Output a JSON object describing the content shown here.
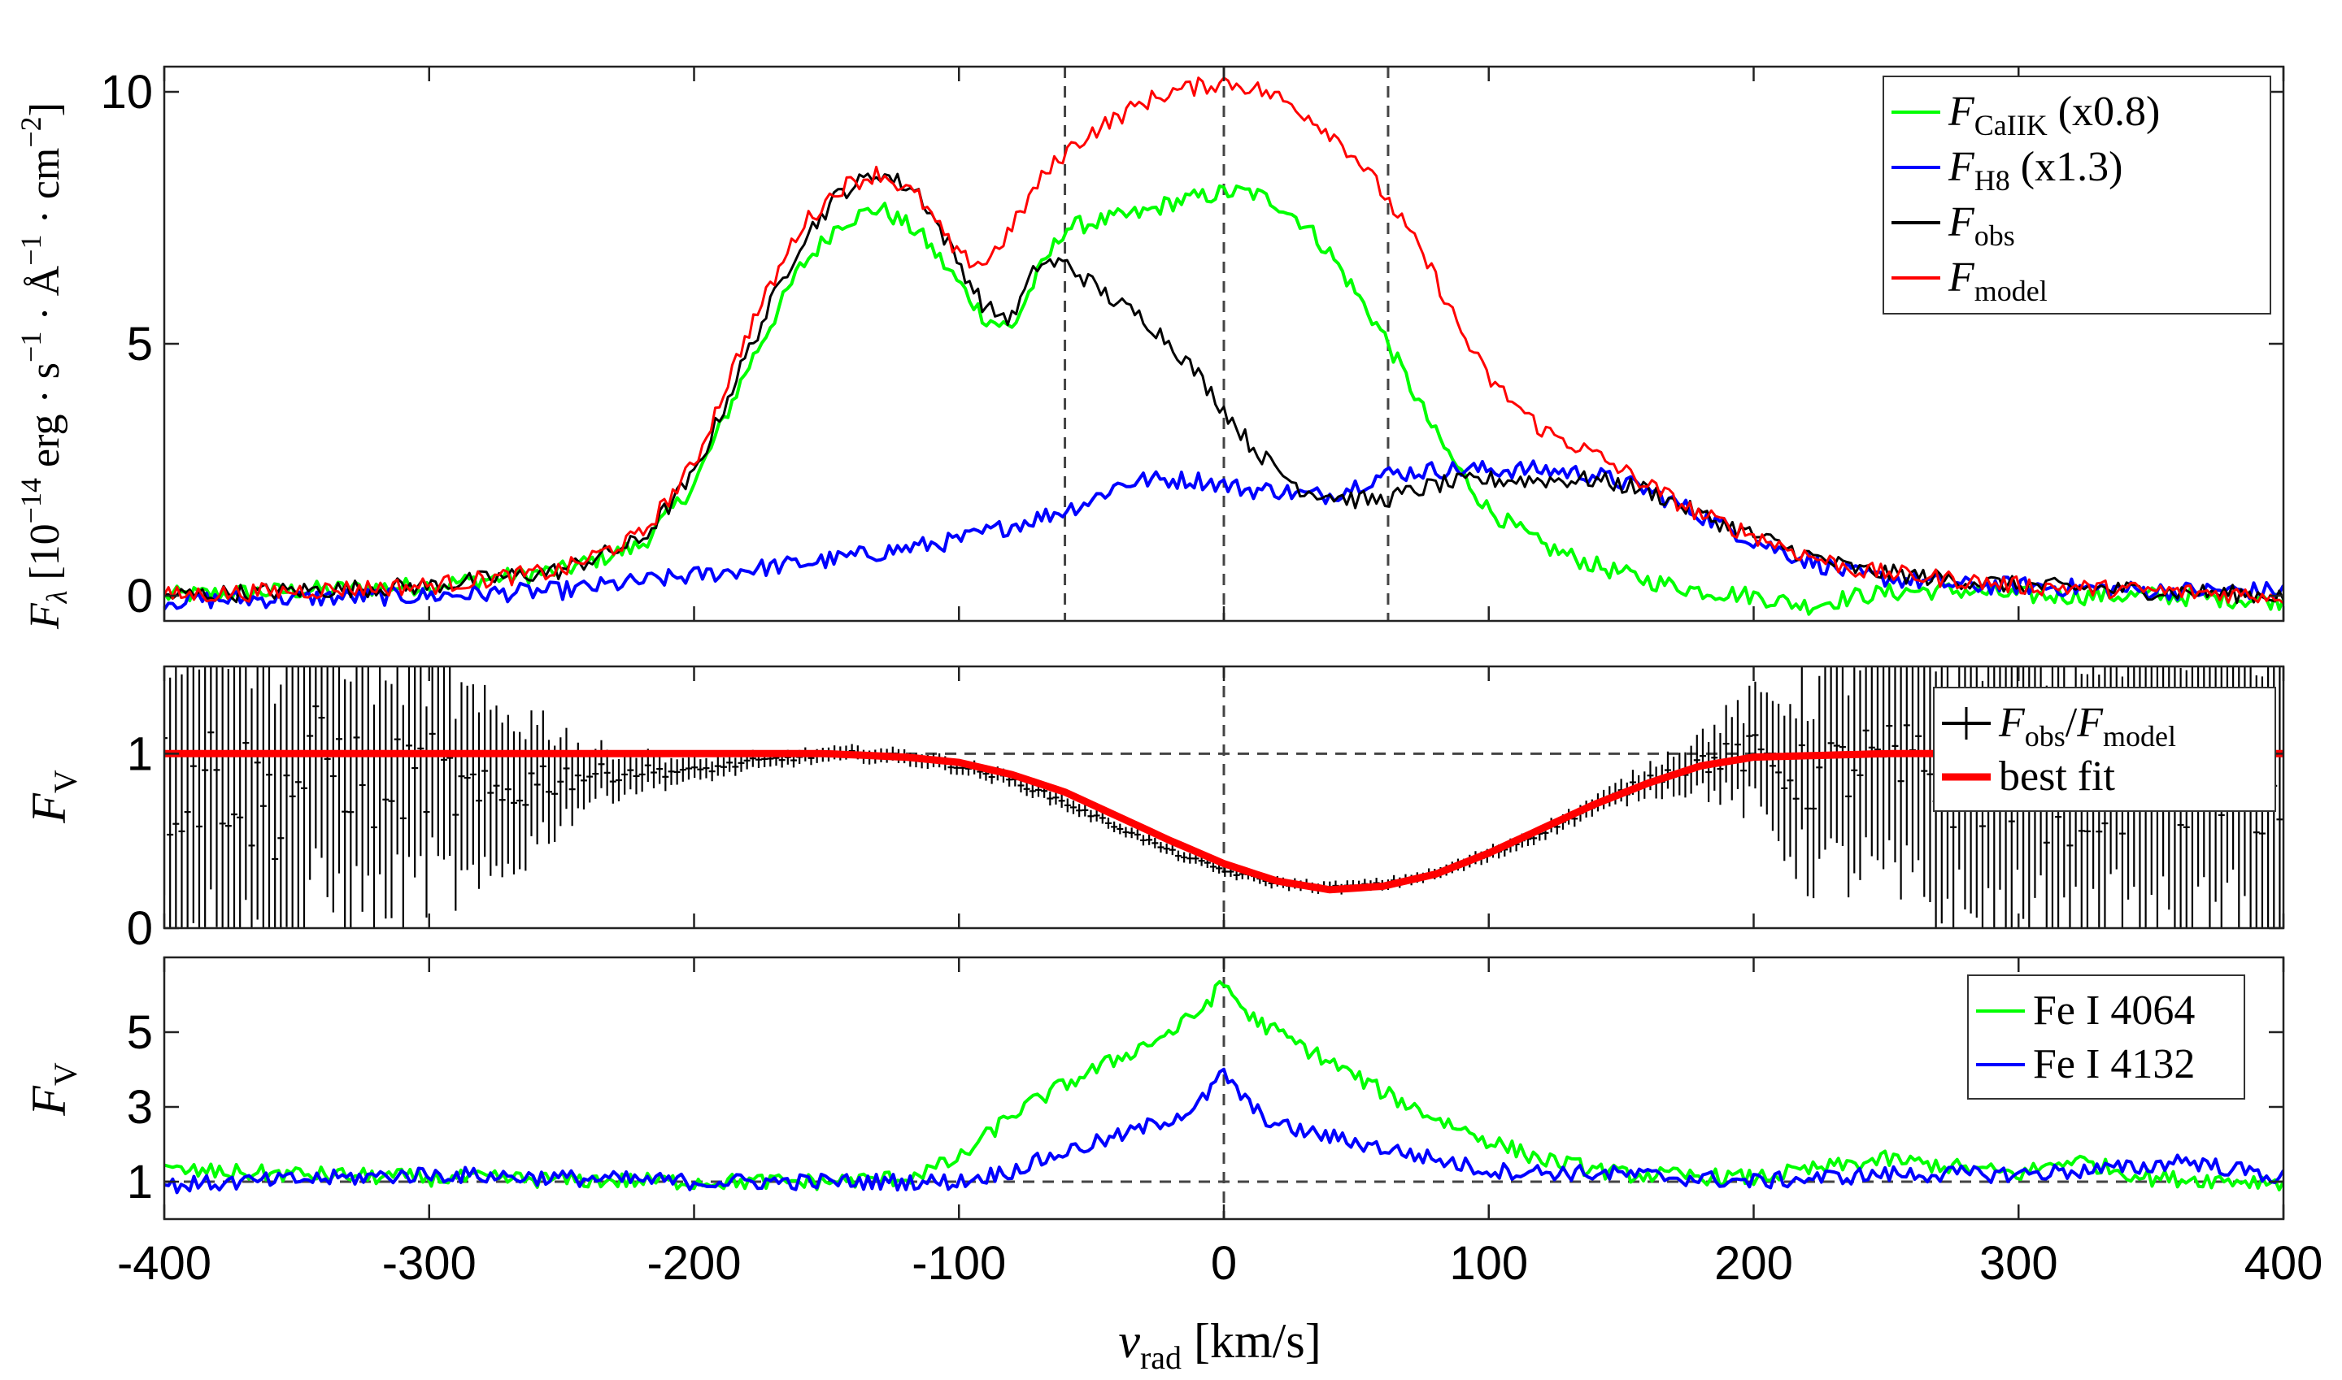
{
  "chart_data": [
    {
      "type": "line",
      "panel": "top",
      "xlim": [
        -400,
        400
      ],
      "ylim": [
        -0.5,
        10.5
      ],
      "xticks": [
        -400,
        -300,
        -200,
        -100,
        0,
        100,
        200,
        300,
        400
      ],
      "yticks": [
        0,
        5,
        10
      ],
      "ytick_labels": [
        "0",
        "5",
        "10"
      ],
      "ylabel": "F_λ [10^-14 erg · s^-1 · Å^-1 · cm^-2]",
      "vlines": [
        -60,
        0,
        62
      ],
      "legend_position": "top-right",
      "legend": [
        "F_CaIIK (x0.8)",
        "F_H8 (x1.3)",
        "F_obs",
        "F_model"
      ],
      "series": [
        {
          "name": "F_CaIIK (x0.8)",
          "color": "#00ff00",
          "x": [
            -400,
            -300,
            -250,
            -220,
            -200,
            -180,
            -160,
            -145,
            -130,
            -115,
            -100,
            -90,
            -80,
            -70,
            -60,
            -50,
            -40,
            -30,
            -20,
            -10,
            0,
            10,
            20,
            30,
            40,
            50,
            60,
            70,
            80,
            90,
            100,
            120,
            140,
            160,
            180,
            200,
            220,
            240,
            260,
            280,
            300,
            350,
            400
          ],
          "y": [
            0.0,
            0.2,
            0.5,
            1.0,
            2.2,
            4.5,
            6.5,
            7.4,
            7.7,
            7.2,
            6.2,
            5.5,
            5.3,
            6.4,
            7.3,
            7.4,
            7.5,
            7.6,
            7.8,
            7.9,
            8.0,
            8.0,
            7.8,
            7.4,
            6.8,
            6.0,
            5.2,
            4.2,
            3.2,
            2.4,
            1.7,
            1.0,
            0.6,
            0.3,
            0.1,
            0.0,
            -0.2,
            0.0,
            0.1,
            0.1,
            0.0,
            0.0,
            -0.1
          ]
        },
        {
          "name": "F_H8 (x1.3)",
          "color": "#0000ff",
          "x": [
            -400,
            -300,
            -250,
            -200,
            -150,
            -100,
            -80,
            -60,
            -50,
            -40,
            -30,
            -20,
            -10,
            0,
            10,
            20,
            30,
            40,
            50,
            60,
            80,
            100,
            120,
            140,
            160,
            180,
            200,
            220,
            240,
            260,
            280,
            300,
            350,
            400
          ],
          "y": [
            -0.1,
            0.0,
            0.1,
            0.4,
            0.7,
            1.1,
            1.4,
            1.7,
            1.9,
            2.2,
            2.3,
            2.3,
            2.3,
            2.2,
            2.1,
            2.1,
            2.0,
            2.0,
            2.2,
            2.4,
            2.5,
            2.5,
            2.5,
            2.4,
            2.1,
            1.6,
            1.1,
            0.7,
            0.4,
            0.3,
            0.2,
            0.2,
            0.1,
            0.1
          ]
        },
        {
          "name": "F_obs",
          "color": "#000000",
          "x": [
            -400,
            -300,
            -250,
            -220,
            -200,
            -180,
            -160,
            -145,
            -130,
            -115,
            -100,
            -90,
            -80,
            -70,
            -60,
            -50,
            -40,
            -30,
            -20,
            -10,
            0,
            10,
            20,
            30,
            40,
            50,
            60,
            80,
            100,
            120,
            140,
            160,
            180,
            200,
            220,
            240,
            260,
            280,
            300,
            350,
            400
          ],
          "y": [
            0.0,
            0.2,
            0.5,
            1.1,
            2.4,
            4.8,
            7.0,
            8.0,
            8.4,
            8.0,
            6.6,
            5.7,
            5.5,
            6.6,
            6.6,
            6.2,
            5.8,
            5.5,
            5.0,
            4.4,
            3.7,
            3.0,
            2.5,
            2.1,
            2.0,
            1.9,
            1.9,
            2.2,
            2.3,
            2.3,
            2.3,
            2.1,
            1.6,
            1.2,
            0.8,
            0.5,
            0.4,
            0.3,
            0.2,
            0.1,
            0.0
          ]
        },
        {
          "name": "F_model",
          "color": "#ff0000",
          "x": [
            -400,
            -300,
            -250,
            -220,
            -200,
            -180,
            -160,
            -145,
            -130,
            -115,
            -100,
            -90,
            -80,
            -70,
            -60,
            -50,
            -40,
            -30,
            -20,
            -10,
            0,
            10,
            20,
            30,
            40,
            50,
            60,
            70,
            80,
            90,
            100,
            120,
            140,
            160,
            180,
            200,
            220,
            240,
            260,
            280,
            300,
            350,
            400
          ],
          "y": [
            0.0,
            0.2,
            0.5,
            1.2,
            2.6,
            5.2,
            7.3,
            8.1,
            8.4,
            7.9,
            6.7,
            6.6,
            7.3,
            8.2,
            8.8,
            9.2,
            9.5,
            9.8,
            10.0,
            10.1,
            10.2,
            10.1,
            9.9,
            9.6,
            9.2,
            8.7,
            8.0,
            7.2,
            6.3,
            5.2,
            4.3,
            3.3,
            2.8,
            2.2,
            1.6,
            1.2,
            0.8,
            0.5,
            0.4,
            0.3,
            0.2,
            0.1,
            0.0
          ]
        }
      ]
    },
    {
      "type": "line",
      "panel": "middle",
      "xlim": [
        -400,
        400
      ],
      "ylim": [
        0,
        1.5
      ],
      "xticks": [
        -400,
        -300,
        -200,
        -100,
        0,
        100,
        200,
        300,
        400
      ],
      "yticks": [
        0,
        1
      ],
      "ytick_labels": [
        "0",
        "1"
      ],
      "ylabel": "F_V",
      "hline": 1,
      "vlines": [
        0
      ],
      "legend_position": "top-right",
      "legend": [
        "F_obs/F_model",
        "best fit"
      ],
      "series": [
        {
          "name": "F_obs/F_model",
          "color": "#000000",
          "style": "errorbar",
          "x": [
            -400,
            -380,
            -360,
            -340,
            -320,
            -300,
            -280,
            -260,
            -240,
            -220,
            -200,
            -180,
            -160,
            -140,
            -120,
            -100,
            -80,
            -60,
            -40,
            -20,
            0,
            20,
            40,
            60,
            80,
            100,
            120,
            140,
            160,
            180,
            200,
            220,
            240,
            260,
            280,
            300,
            320,
            340,
            360,
            380,
            400
          ],
          "y": [
            0.8,
            0.9,
            0.7,
            1.0,
            0.8,
            0.9,
            0.7,
            0.85,
            0.88,
            0.9,
            0.9,
            0.95,
            0.98,
            1.0,
            0.98,
            0.93,
            0.85,
            0.72,
            0.58,
            0.44,
            0.33,
            0.26,
            0.23,
            0.25,
            0.31,
            0.42,
            0.55,
            0.7,
            0.85,
            0.95,
            1.0,
            0.85,
            0.95,
            0.9,
            0.85,
            0.9,
            0.8,
            0.9,
            0.85,
            0.9,
            0.8
          ],
          "yerr": [
            0.9,
            0.9,
            0.9,
            0.8,
            0.7,
            0.6,
            0.5,
            0.35,
            0.15,
            0.1,
            0.06,
            0.05,
            0.04,
            0.04,
            0.04,
            0.04,
            0.04,
            0.04,
            0.03,
            0.03,
            0.03,
            0.03,
            0.03,
            0.03,
            0.03,
            0.04,
            0.04,
            0.05,
            0.08,
            0.15,
            0.3,
            0.5,
            0.6,
            0.7,
            0.8,
            0.9,
            0.9,
            0.9,
            0.9,
            0.9,
            0.9
          ]
        },
        {
          "name": "best fit",
          "color": "#ff0000",
          "x": [
            -400,
            -300,
            -200,
            -150,
            -120,
            -100,
            -80,
            -60,
            -40,
            -20,
            0,
            20,
            40,
            60,
            80,
            100,
            120,
            140,
            160,
            180,
            200,
            250,
            300,
            400
          ],
          "y": [
            1.0,
            1.0,
            1.0,
            1.0,
            0.98,
            0.95,
            0.88,
            0.78,
            0.64,
            0.5,
            0.37,
            0.27,
            0.22,
            0.24,
            0.31,
            0.43,
            0.57,
            0.71,
            0.83,
            0.93,
            0.98,
            1.0,
            1.0,
            1.0
          ]
        }
      ]
    },
    {
      "type": "line",
      "panel": "bottom",
      "xlim": [
        -400,
        400
      ],
      "ylim": [
        0,
        7
      ],
      "xticks": [
        -400,
        -300,
        -200,
        -100,
        0,
        100,
        200,
        300,
        400
      ],
      "xtick_labels": [
        "-400",
        "-300",
        "-200",
        "-100",
        "0",
        "100",
        "200",
        "300",
        "400"
      ],
      "yticks": [
        1,
        3,
        5
      ],
      "ytick_labels": [
        "1",
        "3",
        "5"
      ],
      "ylabel": "F_V",
      "xlabel": "v_rad [km/s]",
      "hline": 1,
      "vlines": [
        0
      ],
      "legend_position": "top-right",
      "legend": [
        "Fe I 4064",
        "Fe I 4132"
      ],
      "series": [
        {
          "name": "Fe I 4064",
          "color": "#00ff00",
          "x": [
            -400,
            -300,
            -200,
            -150,
            -120,
            -100,
            -80,
            -60,
            -40,
            -20,
            -10,
            0,
            10,
            20,
            40,
            60,
            80,
            100,
            120,
            150,
            200,
            250,
            300,
            320,
            350,
            400
          ],
          "y": [
            1.3,
            1.1,
            1.0,
            1.0,
            1.1,
            1.6,
            2.8,
            3.6,
            4.3,
            5.0,
            5.5,
            6.3,
            5.4,
            5.0,
            4.2,
            3.4,
            2.7,
            2.1,
            1.6,
            1.2,
            1.1,
            1.6,
            1.2,
            1.6,
            1.1,
            1.0
          ]
        },
        {
          "name": "Fe I 4132",
          "color": "#0000ff",
          "x": [
            -400,
            -300,
            -200,
            -150,
            -100,
            -80,
            -60,
            -40,
            -20,
            -10,
            0,
            10,
            20,
            40,
            60,
            80,
            100,
            150,
            200,
            250,
            300,
            350,
            360,
            400
          ],
          "y": [
            0.9,
            1.2,
            1.0,
            1.0,
            1.0,
            1.3,
            1.8,
            2.2,
            2.7,
            3.0,
            3.9,
            3.0,
            2.5,
            2.2,
            1.9,
            1.6,
            1.3,
            1.2,
            1.0,
            1.2,
            1.2,
            1.4,
            1.6,
            1.1
          ]
        }
      ]
    }
  ]
}
